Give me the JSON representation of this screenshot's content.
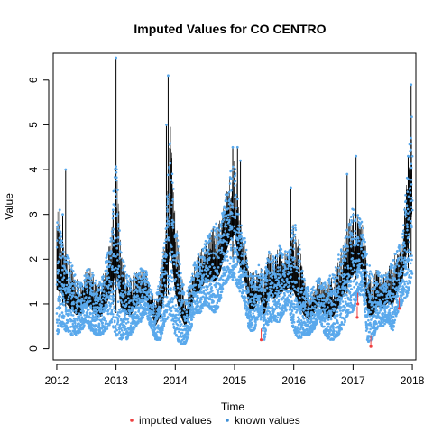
{
  "chart_data": {
    "type": "scatter",
    "title": "Imputed Values for  CO CENTRO",
    "xlabel": "Time",
    "ylabel": "Value",
    "xlim": [
      2011.94,
      2018.06
    ],
    "ylim": [
      -0.25,
      6.6
    ],
    "x_ticks": [
      "2012",
      "2013",
      "2014",
      "2015",
      "2016",
      "2017",
      "2018"
    ],
    "y_ticks": [
      "0",
      "1",
      "2",
      "3",
      "4",
      "5",
      "6"
    ],
    "grid": false,
    "legend": {
      "placement": "bottom",
      "entries": [
        {
          "label": "imputed values",
          "color": "#ef4040"
        },
        {
          "label": "known values",
          "color": "#3d8fd6"
        }
      ]
    },
    "series": [
      {
        "name": "known values",
        "color": "#5aa9ec",
        "x": [
          2012.0,
          2012.08,
          2012.15,
          2012.25,
          2012.33,
          2012.42,
          2012.5,
          2012.58,
          2012.67,
          2012.75,
          2012.83,
          2012.92,
          2013.0,
          2013.08,
          2013.17,
          2013.25,
          2013.33,
          2013.42,
          2013.5,
          2013.58,
          2013.67,
          2013.75,
          2013.83,
          2013.92,
          2014.0,
          2014.08,
          2014.17,
          2014.25,
          2014.33,
          2014.42,
          2014.5,
          2014.58,
          2014.67,
          2014.75,
          2014.83,
          2014.92,
          2015.0,
          2015.08,
          2015.17,
          2015.25,
          2015.33,
          2015.42,
          2015.5,
          2015.58,
          2015.67,
          2015.75,
          2015.83,
          2015.92,
          2016.0,
          2016.08,
          2016.17,
          2016.25,
          2016.33,
          2016.42,
          2016.5,
          2016.58,
          2016.67,
          2016.75,
          2016.83,
          2016.92,
          2017.0,
          2017.08,
          2017.17,
          2017.25,
          2017.33,
          2017.42,
          2017.5,
          2017.58,
          2017.67,
          2017.75,
          2017.83,
          2017.92,
          2018.0
        ],
        "low": [
          0.3,
          0.5,
          0.4,
          0.3,
          0.3,
          0.4,
          0.6,
          0.4,
          0.3,
          0.3,
          0.4,
          0.6,
          0.3,
          0.2,
          0.2,
          0.3,
          0.5,
          0.6,
          0.8,
          0.5,
          0.2,
          0.2,
          0.6,
          0.8,
          0.3,
          0.1,
          0.1,
          0.4,
          0.8,
          0.8,
          1.0,
          0.9,
          0.8,
          1.0,
          1.4,
          1.6,
          1.5,
          1.3,
          1.0,
          0.4,
          0.4,
          0.8,
          0.2,
          0.6,
          0.6,
          0.6,
          0.8,
          0.9,
          0.4,
          0.2,
          0.3,
          0.3,
          0.4,
          0.7,
          0.4,
          0.2,
          0.2,
          0.3,
          0.5,
          0.8,
          0.8,
          1.2,
          1.2,
          0.1,
          0.2,
          0.5,
          0.5,
          0.6,
          0.4,
          0.8,
          1.0,
          1.2,
          1.7
        ],
        "high": [
          3.2,
          2.6,
          2.2,
          1.9,
          1.6,
          1.5,
          1.8,
          1.8,
          1.5,
          1.5,
          2.0,
          2.6,
          4.4,
          2.3,
          1.8,
          1.6,
          1.7,
          1.8,
          1.8,
          1.4,
          1.1,
          1.7,
          2.6,
          5.0,
          3.0,
          2.0,
          1.2,
          1.5,
          2.0,
          2.2,
          2.4,
          2.6,
          2.8,
          2.9,
          3.3,
          3.9,
          4.5,
          3.0,
          2.5,
          1.8,
          1.7,
          1.9,
          1.7,
          2.2,
          2.1,
          2.3,
          2.2,
          2.2,
          2.9,
          2.5,
          1.6,
          1.3,
          1.4,
          1.6,
          1.5,
          1.6,
          1.7,
          2.1,
          2.4,
          2.8,
          3.2,
          3.0,
          2.8,
          2.0,
          1.7,
          1.8,
          1.6,
          1.8,
          2.0,
          2.3,
          2.4,
          4.3,
          5.6
        ]
      },
      {
        "name": "imputed values",
        "color": "#ef4040",
        "x": [
          2015.45,
          2017.07,
          2017.08,
          2017.3,
          2017.78
        ],
        "y": [
          0.2,
          0.7,
          1.0,
          0.05,
          0.9
        ]
      }
    ],
    "spikes": {
      "x": [
        2012.05,
        2012.1,
        2012.15,
        2012.95,
        2013.0,
        2013.85,
        2013.88,
        2014.97,
        2015.05,
        2015.1,
        2015.95,
        2016.9,
        2017.05,
        2017.93,
        2017.98
      ],
      "y": [
        3.1,
        3.0,
        4.0,
        3.1,
        6.5,
        5.0,
        6.1,
        4.5,
        4.5,
        4.2,
        3.6,
        3.9,
        4.3,
        4.3,
        5.9
      ]
    }
  }
}
